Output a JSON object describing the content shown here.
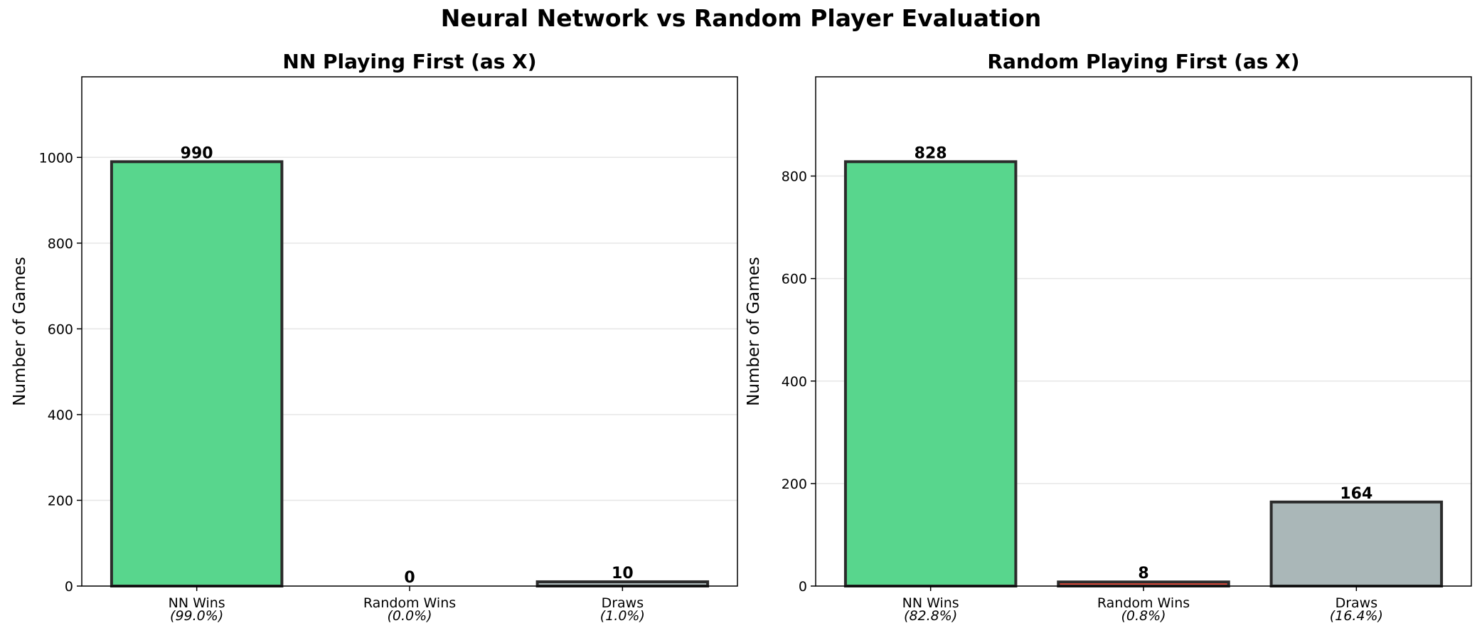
{
  "suptitle": "Neural Network vs Random Player Evaluation",
  "colors": {
    "nn_wins": "#58d68d",
    "random_wins": "#e74c3c",
    "draws": "#aab7b8",
    "edge": "#2b2b2b"
  },
  "chart_data": [
    {
      "type": "bar",
      "title": "NN Playing First (as X)",
      "ylabel": "Number of Games",
      "xlabel": "",
      "categories": [
        "NN Wins",
        "Random Wins",
        "Draws"
      ],
      "percent_labels": [
        "(99.0%)",
        "(0.0%)",
        "(1.0%)"
      ],
      "values": [
        990,
        0,
        10
      ],
      "value_labels": [
        "990",
        "0",
        "10"
      ],
      "yticks": [
        0,
        200,
        400,
        600,
        800,
        1000
      ],
      "ylim": [
        0,
        1188
      ],
      "grid": "y"
    },
    {
      "type": "bar",
      "title": "Random Playing First (as X)",
      "ylabel": "Number of Games",
      "xlabel": "",
      "categories": [
        "NN Wins",
        "Random Wins",
        "Draws"
      ],
      "percent_labels": [
        "(82.8%)",
        "(0.8%)",
        "(16.4%)"
      ],
      "values": [
        828,
        8,
        164
      ],
      "value_labels": [
        "828",
        "8",
        "164"
      ],
      "yticks": [
        0,
        200,
        400,
        600,
        800
      ],
      "ylim": [
        0,
        993.6
      ],
      "grid": "y"
    }
  ]
}
